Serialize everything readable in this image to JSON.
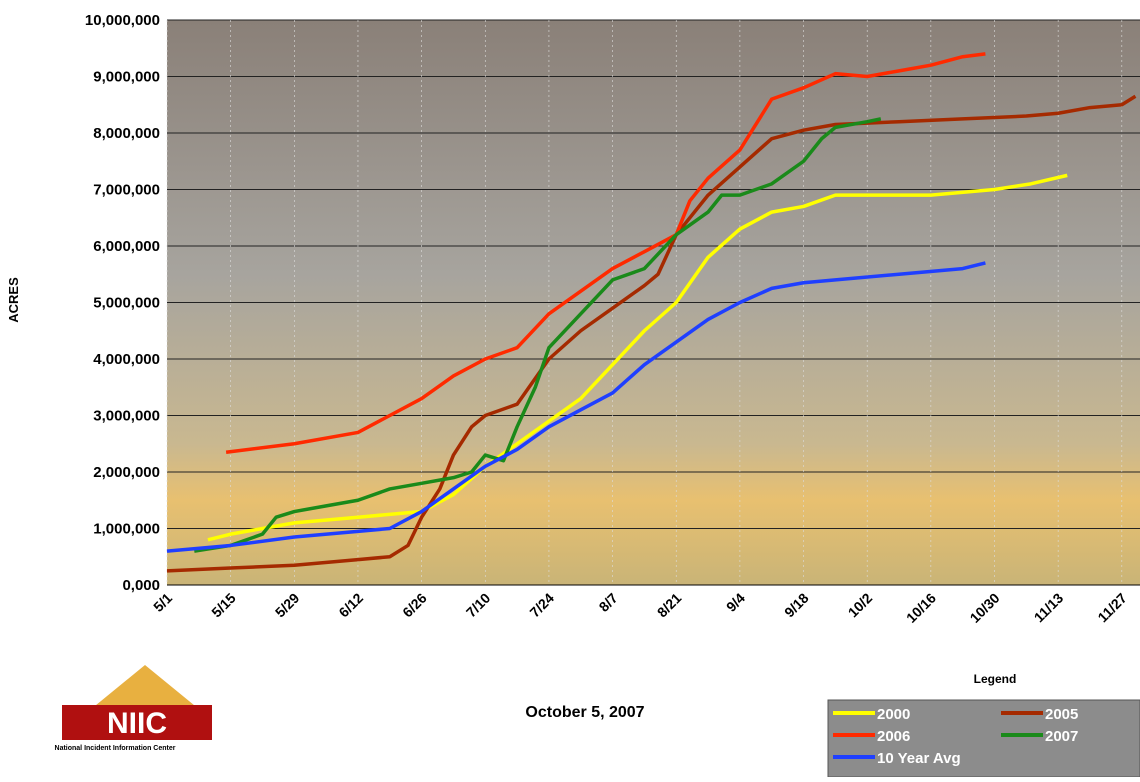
{
  "chart_data": {
    "type": "line",
    "y_label": "ACRES",
    "subtitle": "October 5, 2007",
    "legend_title": "Legend",
    "logo_text": "National Incident Information Center",
    "logo_mark": "NIIC",
    "xlim": [
      0,
      214
    ],
    "ylim": [
      0,
      10000000
    ],
    "xticks": [
      {
        "value": 0,
        "label": "5/1"
      },
      {
        "value": 14,
        "label": "5/15"
      },
      {
        "value": 28,
        "label": "5/29"
      },
      {
        "value": 42,
        "label": "6/12"
      },
      {
        "value": 56,
        "label": "6/26"
      },
      {
        "value": 70,
        "label": "7/10"
      },
      {
        "value": 84,
        "label": "7/24"
      },
      {
        "value": 98,
        "label": "8/7"
      },
      {
        "value": 112,
        "label": "8/21"
      },
      {
        "value": 126,
        "label": "9/4"
      },
      {
        "value": 140,
        "label": "9/18"
      },
      {
        "value": 154,
        "label": "10/2"
      },
      {
        "value": 168,
        "label": "10/16"
      },
      {
        "value": 182,
        "label": "10/30"
      },
      {
        "value": 196,
        "label": "11/13"
      },
      {
        "value": 210,
        "label": "11/27"
      }
    ],
    "yticks": [
      {
        "value": 0,
        "label": "0,000"
      },
      {
        "value": 1000000,
        "label": "1,000,000"
      },
      {
        "value": 2000000,
        "label": "2,000,000"
      },
      {
        "value": 3000000,
        "label": "3,000,000"
      },
      {
        "value": 4000000,
        "label": "4,000,000"
      },
      {
        "value": 5000000,
        "label": "5,000,000"
      },
      {
        "value": 6000000,
        "label": "6,000,000"
      },
      {
        "value": 7000000,
        "label": "7,000,000"
      },
      {
        "value": 8000000,
        "label": "8,000,000"
      },
      {
        "value": 9000000,
        "label": "9,000,000"
      },
      {
        "value": 10000000,
        "label": "10,000,000"
      }
    ],
    "grid": true,
    "series": [
      {
        "name": "2000",
        "color": "#ffff00",
        "x": [
          9,
          14,
          21,
          28,
          42,
          56,
          63,
          70,
          77,
          84,
          91,
          98,
          105,
          112,
          119,
          126,
          133,
          140,
          147,
          154,
          168,
          182,
          190,
          198
        ],
        "values": [
          800000,
          900000,
          1000000,
          1100000,
          1200000,
          1300000,
          1600000,
          2100000,
          2500000,
          2900000,
          3300000,
          3900000,
          4500000,
          5000000,
          5800000,
          6300000,
          6600000,
          6700000,
          6900000,
          6900000,
          6900000,
          7000000,
          7100000,
          7250000
        ]
      },
      {
        "name": "2005",
        "color": "#a52a00",
        "x": [
          0,
          14,
          28,
          42,
          49,
          53,
          56,
          60,
          63,
          67,
          70,
          77,
          84,
          91,
          98,
          105,
          108,
          112,
          119,
          126,
          133,
          140,
          147,
          161,
          175,
          189,
          196,
          203,
          210,
          213
        ],
        "values": [
          250000,
          300000,
          350000,
          450000,
          500000,
          700000,
          1200000,
          1700000,
          2300000,
          2800000,
          3000000,
          3200000,
          4000000,
          4500000,
          4900000,
          5300000,
          5500000,
          6200000,
          6900000,
          7400000,
          7900000,
          8050000,
          8150000,
          8200000,
          8250000,
          8300000,
          8350000,
          8450000,
          8500000,
          8650000
        ]
      },
      {
        "name": "2006",
        "color": "#ff2a00",
        "x": [
          13,
          28,
          42,
          49,
          56,
          63,
          70,
          77,
          84,
          91,
          98,
          105,
          112,
          115,
          119,
          126,
          133,
          140,
          147,
          154,
          161,
          168,
          175,
          180
        ],
        "values": [
          2350000,
          2500000,
          2700000,
          3000000,
          3300000,
          3700000,
          4000000,
          4200000,
          4800000,
          5200000,
          5600000,
          5900000,
          6200000,
          6800000,
          7200000,
          7700000,
          8600000,
          8800000,
          9050000,
          9000000,
          9100000,
          9200000,
          9350000,
          9400000
        ]
      },
      {
        "name": "2007",
        "color": "#1a8a1a",
        "x": [
          6,
          14,
          21,
          24,
          28,
          35,
          42,
          49,
          56,
          63,
          67,
          70,
          74,
          77,
          81,
          84,
          91,
          98,
          105,
          112,
          119,
          122,
          126,
          133,
          140,
          144,
          147,
          154,
          157
        ],
        "values": [
          600000,
          700000,
          900000,
          1200000,
          1300000,
          1400000,
          1500000,
          1700000,
          1800000,
          1900000,
          2000000,
          2300000,
          2200000,
          2800000,
          3500000,
          4200000,
          4800000,
          5400000,
          5600000,
          6200000,
          6600000,
          6900000,
          6900000,
          7100000,
          7500000,
          7900000,
          8100000,
          8200000,
          8250000
        ]
      },
      {
        "name": "10 Year Avg",
        "color": "#1f3fff",
        "x": [
          0,
          14,
          28,
          42,
          49,
          56,
          63,
          70,
          77,
          84,
          91,
          98,
          105,
          112,
          119,
          126,
          133,
          140,
          147,
          161,
          175,
          180
        ],
        "values": [
          600000,
          700000,
          850000,
          950000,
          1000000,
          1300000,
          1700000,
          2100000,
          2400000,
          2800000,
          3100000,
          3400000,
          3900000,
          4300000,
          4700000,
          5000000,
          5250000,
          5350000,
          5400000,
          5500000,
          5600000,
          5700000
        ]
      }
    ]
  }
}
